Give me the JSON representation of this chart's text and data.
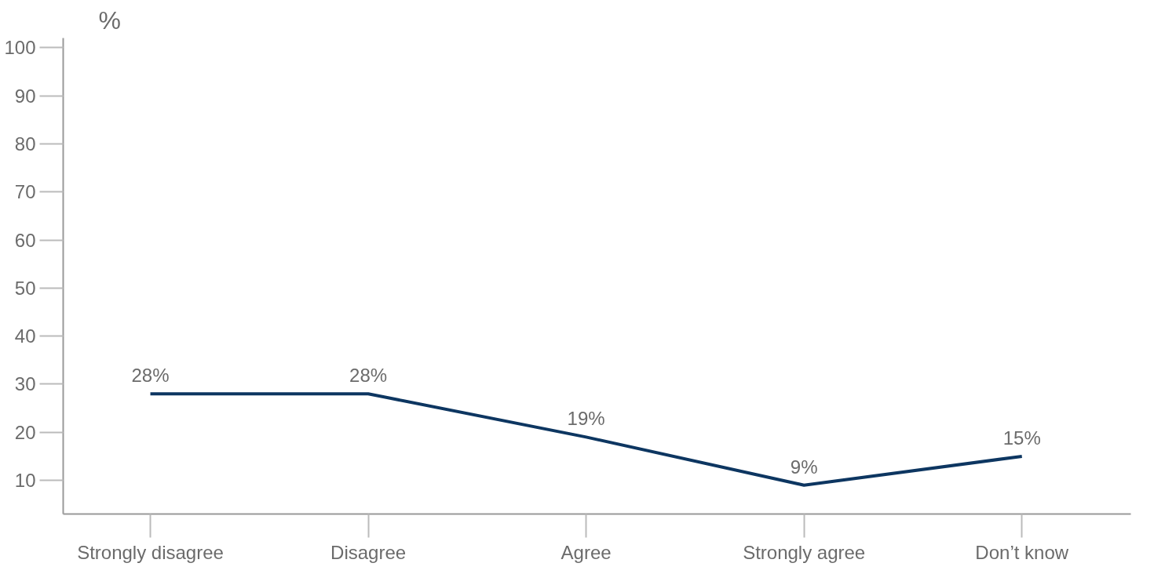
{
  "chart_data": {
    "type": "line",
    "ylabel": "%",
    "categories": [
      "Strongly disagree",
      "Disagree",
      "Agree",
      "Strongly agree",
      "Don’t know"
    ],
    "series": [
      {
        "color": "#0d3661",
        "values": [
          28,
          28,
          19,
          9,
          15
        ],
        "value_labels": [
          "28%",
          "28%",
          "19%",
          "9%",
          "15%"
        ]
      }
    ],
    "ylim": [
      3,
      102
    ],
    "yticks": [
      10,
      20,
      30,
      40,
      50,
      60,
      70,
      80,
      90,
      100
    ],
    "grid": false,
    "marker": "none",
    "line_style": "solid"
  }
}
